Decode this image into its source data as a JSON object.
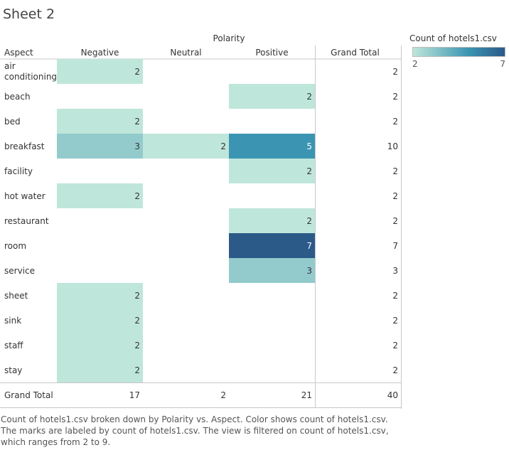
{
  "sheet": {
    "title": "Sheet 2"
  },
  "chart_data": {
    "type": "heatmap",
    "column_header": "Polarity",
    "row_header": "Aspect",
    "columns": [
      "Negative",
      "Neutral",
      "Positive"
    ],
    "total_label": "Grand Total",
    "rows": [
      {
        "label": [
          "air",
          "conditioning"
        ],
        "values": [
          2,
          null,
          null
        ],
        "total": 2
      },
      {
        "label": [
          "beach"
        ],
        "values": [
          null,
          null,
          2
        ],
        "total": 2
      },
      {
        "label": [
          "bed"
        ],
        "values": [
          2,
          null,
          null
        ],
        "total": 2
      },
      {
        "label": [
          "breakfast"
        ],
        "values": [
          3,
          2,
          5
        ],
        "total": 10
      },
      {
        "label": [
          "facility"
        ],
        "values": [
          null,
          null,
          2
        ],
        "total": 2
      },
      {
        "label": [
          "hot water"
        ],
        "values": [
          2,
          null,
          null
        ],
        "total": 2
      },
      {
        "label": [
          "restaurant"
        ],
        "values": [
          null,
          null,
          2
        ],
        "total": 2
      },
      {
        "label": [
          "room"
        ],
        "values": [
          null,
          null,
          7
        ],
        "total": 7
      },
      {
        "label": [
          "service"
        ],
        "values": [
          null,
          null,
          3
        ],
        "total": 3
      },
      {
        "label": [
          "sheet"
        ],
        "values": [
          2,
          null,
          null
        ],
        "total": 2
      },
      {
        "label": [
          "sink"
        ],
        "values": [
          2,
          null,
          null
        ],
        "total": 2
      },
      {
        "label": [
          "staff"
        ],
        "values": [
          2,
          null,
          null
        ],
        "total": 2
      },
      {
        "label": [
          "stay"
        ],
        "values": [
          2,
          null,
          null
        ],
        "total": 2
      }
    ],
    "column_totals": [
      17,
      2,
      21
    ],
    "grand_total": 40,
    "legend": {
      "title": "Count of hotels1.csv",
      "min": 2,
      "max": 7,
      "min_label": "2",
      "max_label": "7",
      "color_low": "#bfe6da",
      "color_mid": "#3b95b2",
      "color_high": "#2b5a89"
    },
    "caption": "Count of hotels1.csv broken down by Polarity vs. Aspect.  Color shows count of hotels1.csv.  The marks are labeled by count of hotels1.csv. The view is filtered on count of hotels1.csv, which ranges from 2 to 9."
  }
}
